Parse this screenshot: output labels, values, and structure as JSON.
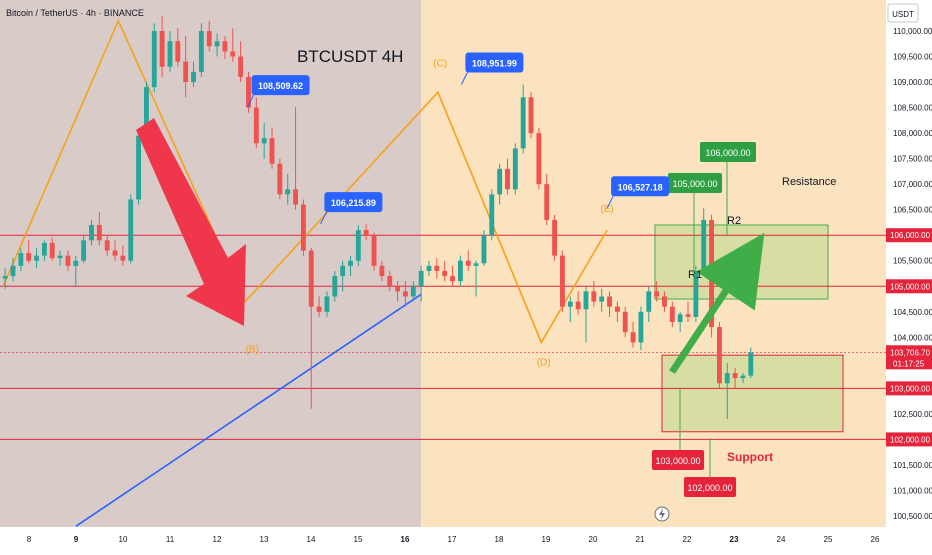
{
  "header": {
    "symbol": "Bitcoin / TetherUS · 4h · BINANCE",
    "chart_title": "BTCUSDT 4H",
    "currency": "USDT",
    "countdown": "01:17:25"
  },
  "chart_data": {
    "type": "candlestick",
    "title": "BTCUSDT 4H",
    "symbol": "Bitcoin / TetherUS · 4h · BINANCE",
    "ylim": [
      100300,
      110400
    ],
    "xlim": [
      7.45,
      26.2
    ],
    "y_ticks": [
      100500,
      101000,
      101500,
      102000,
      102500,
      103000,
      103500,
      104000,
      104500,
      105000,
      105500,
      106000,
      106500,
      107000,
      107500,
      108000,
      108500,
      109000,
      109500,
      110000
    ],
    "x_ticks": [
      {
        "x": 8,
        "label": "8",
        "bold": false
      },
      {
        "x": 9,
        "label": "9",
        "bold": true
      },
      {
        "x": 10,
        "label": "10",
        "bold": false
      },
      {
        "x": 11,
        "label": "11",
        "bold": false
      },
      {
        "x": 12,
        "label": "12",
        "bold": false
      },
      {
        "x": 13,
        "label": "13",
        "bold": false
      },
      {
        "x": 14,
        "label": "14",
        "bold": false
      },
      {
        "x": 15,
        "label": "15",
        "bold": false
      },
      {
        "x": 16,
        "label": "16",
        "bold": true
      },
      {
        "x": 17,
        "label": "17",
        "bold": false
      },
      {
        "x": 18,
        "label": "18",
        "bold": false
      },
      {
        "x": 19,
        "label": "19",
        "bold": false
      },
      {
        "x": 20,
        "label": "20",
        "bold": false
      },
      {
        "x": 21,
        "label": "21",
        "bold": false
      },
      {
        "x": 22,
        "label": "22",
        "bold": false
      },
      {
        "x": 23,
        "label": "23",
        "bold": true
      },
      {
        "x": 24,
        "label": "24",
        "bold": false
      },
      {
        "x": 25,
        "label": "25",
        "bold": false
      },
      {
        "x": 26,
        "label": "26",
        "bold": false
      }
    ],
    "last_price": {
      "value": 103706.7,
      "label": "103,706.70"
    },
    "candles_x_start": 7.45,
    "candles_x_step": 0.167,
    "candles": [
      [
        105150,
        105350,
        104950,
        105200
      ],
      [
        105200,
        105550,
        105100,
        105400
      ],
      [
        105400,
        105750,
        105300,
        105650
      ],
      [
        105650,
        105900,
        105450,
        105500
      ],
      [
        105500,
        105750,
        105350,
        105600
      ],
      [
        105600,
        105900,
        105500,
        105850
      ],
      [
        105850,
        105950,
        105500,
        105550
      ],
      [
        105550,
        105700,
        105400,
        105600
      ],
      [
        105600,
        105700,
        105300,
        105400
      ],
      [
        105400,
        105600,
        105000,
        105500
      ],
      [
        105500,
        106000,
        105450,
        105900
      ],
      [
        105900,
        106300,
        105800,
        106200
      ],
      [
        106200,
        106450,
        105800,
        105900
      ],
      [
        105900,
        106000,
        105600,
        105700
      ],
      [
        105700,
        105900,
        105500,
        105600
      ],
      [
        105600,
        105800,
        105400,
        105500
      ],
      [
        105500,
        106800,
        105450,
        106700
      ],
      [
        106700,
        108100,
        106600,
        107950
      ],
      [
        107950,
        109000,
        107800,
        108900
      ],
      [
        108900,
        110150,
        108800,
        110000
      ],
      [
        110000,
        110300,
        109100,
        109300
      ],
      [
        109300,
        110000,
        109200,
        109800
      ],
      [
        109800,
        110050,
        109300,
        109400
      ],
      [
        109400,
        109900,
        108700,
        109000
      ],
      [
        109000,
        109400,
        108900,
        109200
      ],
      [
        109200,
        110150,
        109100,
        110000
      ],
      [
        110000,
        110200,
        109600,
        109700
      ],
      [
        109700,
        109950,
        109500,
        109800
      ],
      [
        109800,
        109900,
        109450,
        109600
      ],
      [
        109600,
        110050,
        109400,
        109500
      ],
      [
        109500,
        109800,
        109000,
        109100
      ],
      [
        109100,
        109200,
        108400,
        108500
      ],
      [
        108500,
        108700,
        107700,
        107800
      ],
      [
        107800,
        108200,
        107500,
        107900
      ],
      [
        107900,
        108100,
        107300,
        107400
      ],
      [
        107400,
        107500,
        106700,
        106800
      ],
      [
        106800,
        107200,
        106600,
        106900
      ],
      [
        106900,
        108510,
        106500,
        106600
      ],
      [
        106600,
        106700,
        105600,
        105700
      ],
      [
        105700,
        105750,
        102600,
        104600
      ],
      [
        104600,
        104800,
        104400,
        104500
      ],
      [
        104500,
        104900,
        104400,
        104800
      ],
      [
        104800,
        105300,
        104700,
        105200
      ],
      [
        105200,
        105500,
        104900,
        105400
      ],
      [
        105400,
        105600,
        105200,
        105500
      ],
      [
        105500,
        106200,
        105400,
        106100
      ],
      [
        106100,
        106216,
        105900,
        106000
      ],
      [
        106000,
        106050,
        105300,
        105400
      ],
      [
        105400,
        105500,
        105100,
        105200
      ],
      [
        105200,
        105300,
        104900,
        105000
      ],
      [
        105000,
        105100,
        104700,
        104900
      ],
      [
        104900,
        105100,
        104600,
        104800
      ],
      [
        104800,
        105100,
        104700,
        105000
      ],
      [
        105000,
        105400,
        104700,
        105300
      ],
      [
        105300,
        105500,
        105200,
        105400
      ],
      [
        105400,
        105550,
        105150,
        105300
      ],
      [
        105300,
        105500,
        105100,
        105200
      ],
      [
        105200,
        105400,
        105000,
        105100
      ],
      [
        105100,
        105600,
        105000,
        105500
      ],
      [
        105500,
        105700,
        105300,
        105400
      ],
      [
        105400,
        105500,
        104800,
        105450
      ],
      [
        105450,
        106100,
        105400,
        106000
      ],
      [
        106000,
        106900,
        105900,
        106800
      ],
      [
        106800,
        107400,
        106600,
        107300
      ],
      [
        107300,
        107500,
        106800,
        106900
      ],
      [
        106900,
        107800,
        106800,
        107700
      ],
      [
        107700,
        108951,
        107600,
        108700
      ],
      [
        108700,
        108800,
        107900,
        108000
      ],
      [
        108000,
        108100,
        106900,
        107000
      ],
      [
        107000,
        107200,
        106200,
        106300
      ],
      [
        106300,
        106400,
        105500,
        105600
      ],
      [
        105600,
        105700,
        104500,
        104600
      ],
      [
        104600,
        104800,
        104300,
        104700
      ],
      [
        104700,
        104900,
        104450,
        104550
      ],
      [
        104550,
        105000,
        103900,
        104900
      ],
      [
        104900,
        105100,
        104600,
        104700
      ],
      [
        104700,
        104950,
        104500,
        104800
      ],
      [
        104800,
        104900,
        104400,
        104600
      ],
      [
        104600,
        104700,
        104300,
        104500
      ],
      [
        104500,
        104600,
        104000,
        104100
      ],
      [
        104100,
        104300,
        103800,
        103900
      ],
      [
        103900,
        104600,
        103750,
        104500
      ],
      [
        104500,
        105000,
        104300,
        104900
      ],
      [
        104900,
        105100,
        104700,
        104800
      ],
      [
        104800,
        104900,
        104500,
        104600
      ],
      [
        104600,
        104700,
        104200,
        104300
      ],
      [
        104300,
        104500,
        104100,
        104450
      ],
      [
        104450,
        104700,
        104300,
        104400
      ],
      [
        104400,
        105400,
        104300,
        105300
      ],
      [
        105300,
        106527,
        105200,
        106300
      ],
      [
        106300,
        106400,
        104000,
        104200
      ],
      [
        104200,
        104300,
        103000,
        103100
      ],
      [
        103100,
        103500,
        102400,
        103300
      ],
      [
        103300,
        103400,
        103000,
        103200
      ],
      [
        103200,
        103300,
        103100,
        103250
      ],
      [
        103250,
        103800,
        103200,
        103700
      ]
    ],
    "resistance_lines": [
      {
        "value": 106000,
        "label": "106,000.00"
      },
      {
        "value": 105000,
        "label": "105,000.00"
      }
    ],
    "support_lines": [
      {
        "value": 103000,
        "label": "103,000.00"
      },
      {
        "value": 102000,
        "label": "102,000.00"
      }
    ],
    "callouts_blue": [
      {
        "x": 12.65,
        "y": 108510,
        "label": "108,509.62"
      },
      {
        "x": 14.2,
        "y": 106216,
        "label": "106,215.89"
      },
      {
        "x": 17.2,
        "y": 108952,
        "label": "108,951.99"
      },
      {
        "x": 20.3,
        "y": 106527,
        "label": "106,527.18"
      }
    ],
    "zone_labels": {
      "resistance": "Resistance",
      "support": "Support",
      "r1": "R1",
      "r2": "R2"
    },
    "green_labels": [
      "106,000.00",
      "105,000.00"
    ],
    "red_labels": [
      "103,000.00",
      "102,000.00"
    ],
    "pattern_labels": {
      "B": "(B)",
      "C": "(C)",
      "D": "(D)",
      "E": "(E)"
    }
  }
}
